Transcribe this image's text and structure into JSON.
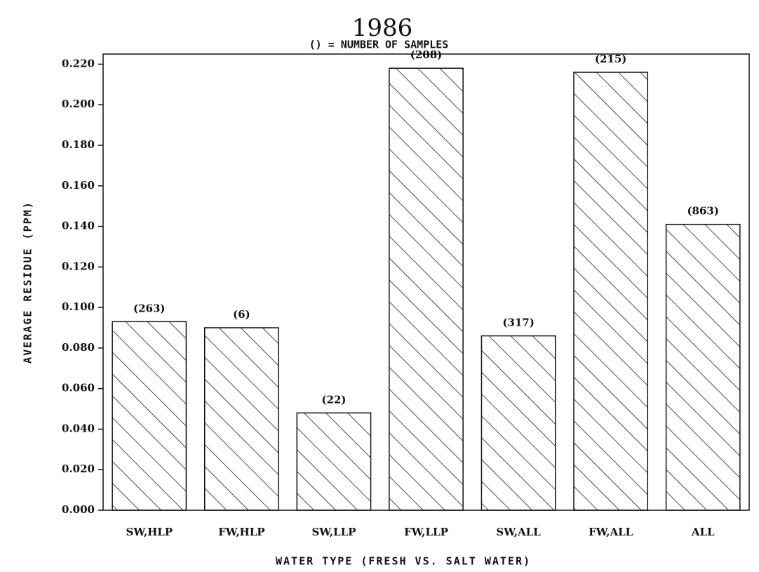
{
  "chart_data": {
    "type": "bar",
    "title": "1986",
    "subtitle": "() = NUMBER OF SAMPLES",
    "x_label": "WATER TYPE (FRESH VS. SALT WATER)",
    "y_label": "AVERAGE RESIDUE (PPM)",
    "categories": [
      "SW,HLP",
      "FW,HLP",
      "SW,LLP",
      "FW,LLP",
      "SW,ALL",
      "FW,ALL",
      "ALL"
    ],
    "values": [
      0.093,
      0.09,
      0.048,
      0.218,
      0.086,
      0.216,
      0.141
    ],
    "sample_labels": [
      "(263)",
      "(6)",
      "(22)",
      "(208)",
      "(317)",
      "(215)",
      "(863)"
    ],
    "color": "#111111",
    "ylim": [
      0,
      0.225
    ],
    "yticks": [
      {
        "value": 0,
        "label": "0.000"
      },
      {
        "value": 0.02,
        "label": "0.020"
      },
      {
        "value": 0.04,
        "label": "0.040"
      },
      {
        "value": 0.06,
        "label": "0.060"
      },
      {
        "value": 0.08,
        "label": "0.080"
      },
      {
        "value": 0.1,
        "label": "0.100"
      },
      {
        "value": 0.12,
        "label": "0.120"
      },
      {
        "value": 0.14,
        "label": "0.140"
      },
      {
        "value": 0.16,
        "label": "0.160"
      },
      {
        "value": 0.18,
        "label": "0.180"
      },
      {
        "value": 0.2,
        "label": "0.200"
      },
      {
        "value": 0.22,
        "label": "0.220"
      }
    ],
    "grid": false
  }
}
